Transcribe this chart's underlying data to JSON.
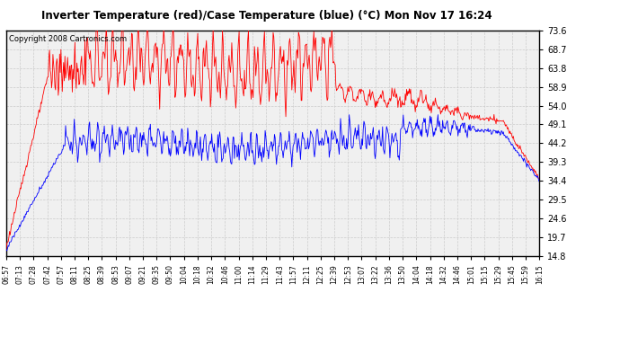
{
  "title": "Inverter Temperature (red)/Case Temperature (blue) (°C) Mon Nov 17 16:24",
  "copyright": "Copyright 2008 Cartronics.com",
  "background_color": "#ffffff",
  "plot_bg_color": "#f0f0f0",
  "grid_color": "#cccccc",
  "yticks": [
    14.8,
    19.7,
    24.6,
    29.5,
    34.4,
    39.3,
    44.2,
    49.1,
    54.0,
    58.9,
    63.8,
    68.7,
    73.6
  ],
  "ymin": 14.8,
  "ymax": 73.6,
  "red_color": "#ff0000",
  "blue_color": "#0000ff",
  "x_labels": [
    "06:57",
    "07:13",
    "07:28",
    "07:42",
    "07:57",
    "08:11",
    "08:25",
    "08:39",
    "08:53",
    "09:07",
    "09:21",
    "09:35",
    "09:50",
    "10:04",
    "10:18",
    "10:32",
    "10:46",
    "11:00",
    "11:14",
    "11:29",
    "11:43",
    "11:57",
    "12:11",
    "12:25",
    "12:39",
    "12:53",
    "13:07",
    "13:22",
    "13:36",
    "13:50",
    "14:04",
    "14:18",
    "14:32",
    "14:46",
    "15:01",
    "15:15",
    "15:29",
    "15:45",
    "15:59",
    "16:15"
  ],
  "n_points": 800
}
